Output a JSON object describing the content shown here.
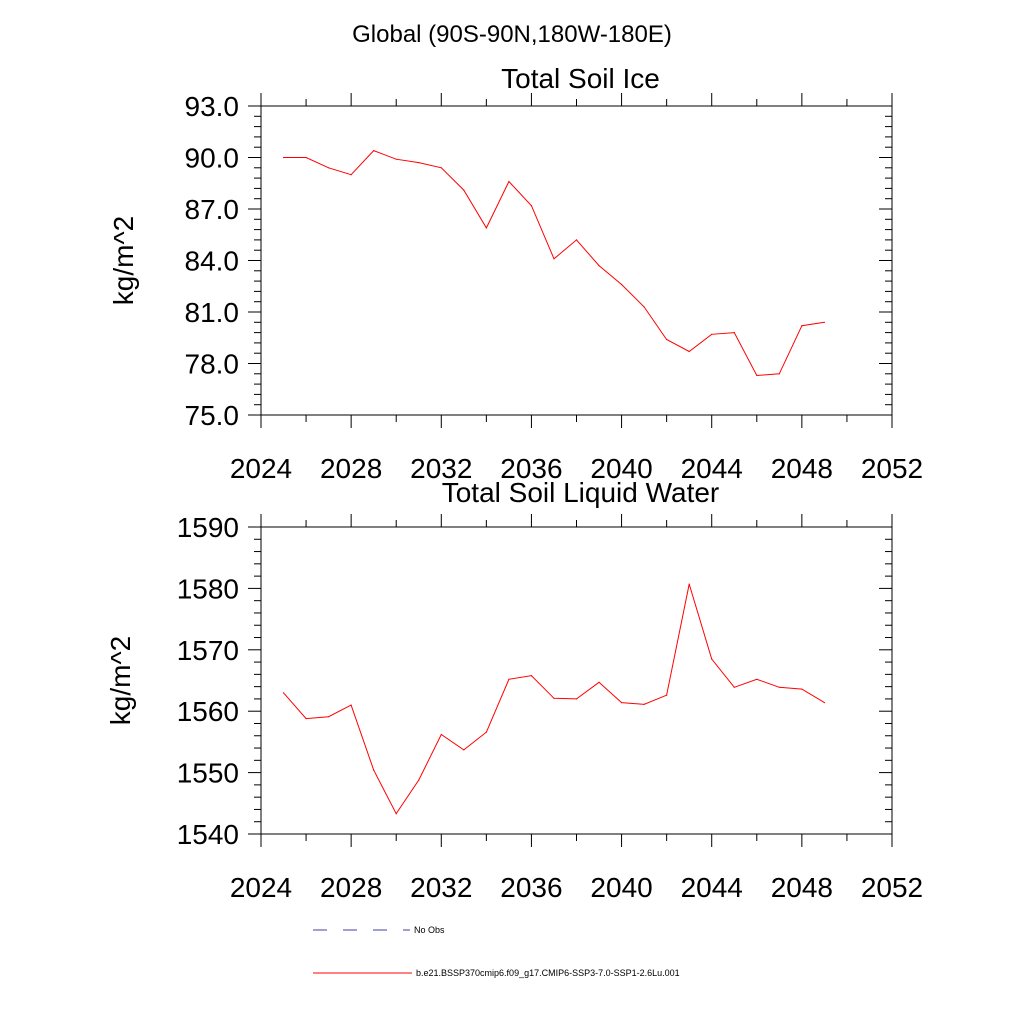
{
  "page_title": "Global (90S-90N,180W-180E)",
  "colors": {
    "model": "#ff0000",
    "obs": "#4040a0",
    "axis": "#000000"
  },
  "legend": {
    "obs_label": "No Obs",
    "model_label": "b.e21.BSSP370cmip6.f09_g17.CMIP6-SSP3-7.0-SSP1-2.6Lu.001"
  },
  "chart_data": [
    {
      "type": "line",
      "title": "Total Soil Ice",
      "xlabel": "",
      "ylabel": "kg/m^2",
      "xlim": [
        2024,
        2052
      ],
      "ylim": [
        75,
        93
      ],
      "x_ticks": [
        2024,
        2028,
        2032,
        2036,
        2040,
        2044,
        2048,
        2052
      ],
      "y_ticks": [
        "75.0",
        "78.0",
        "81.0",
        "84.0",
        "87.0",
        "90.0",
        "93.0"
      ],
      "grid": false,
      "legend_position": "bottom",
      "series": [
        {
          "name": "b.e21.BSSP370cmip6.f09_g17.CMIP6-SSP3-7.0-SSP1-2.6Lu.001",
          "x": [
            2025,
            2026,
            2027,
            2028,
            2029,
            2030,
            2031,
            2032,
            2033,
            2034,
            2035,
            2036,
            2037,
            2038,
            2039,
            2040,
            2041,
            2042,
            2043,
            2044,
            2045,
            2046,
            2047,
            2048,
            2049
          ],
          "values": [
            90.0,
            90.0,
            89.4,
            89.0,
            90.4,
            89.9,
            89.7,
            89.4,
            88.1,
            85.9,
            88.6,
            87.2,
            84.1,
            85.2,
            83.7,
            82.6,
            81.3,
            79.4,
            78.7,
            79.7,
            79.8,
            77.3,
            77.4,
            80.2,
            80.4
          ]
        }
      ]
    },
    {
      "type": "line",
      "title": "Total Soil Liquid Water",
      "xlabel": "",
      "ylabel": "kg/m^2",
      "xlim": [
        2024,
        2052
      ],
      "ylim": [
        1540,
        1590
      ],
      "x_ticks": [
        2024,
        2028,
        2032,
        2036,
        2040,
        2044,
        2048,
        2052
      ],
      "y_ticks": [
        "1540",
        "1550",
        "1560",
        "1570",
        "1580",
        "1590"
      ],
      "grid": false,
      "legend_position": "bottom",
      "series": [
        {
          "name": "b.e21.BSSP370cmip6.f09_g17.CMIP6-SSP3-7.0-SSP1-2.6Lu.001",
          "x": [
            2025,
            2026,
            2027,
            2028,
            2029,
            2030,
            2031,
            2032,
            2033,
            2034,
            2035,
            2036,
            2037,
            2038,
            2039,
            2040,
            2041,
            2042,
            2043,
            2044,
            2045,
            2046,
            2047,
            2048,
            2049
          ],
          "values": [
            1563.0,
            1558.8,
            1559.1,
            1561.0,
            1550.4,
            1543.3,
            1548.8,
            1556.2,
            1553.7,
            1556.6,
            1565.2,
            1565.8,
            1562.1,
            1562.0,
            1564.7,
            1561.4,
            1561.1,
            1562.6,
            1580.7,
            1568.5,
            1563.9,
            1565.2,
            1563.9,
            1563.6,
            1561.4
          ]
        }
      ]
    }
  ]
}
